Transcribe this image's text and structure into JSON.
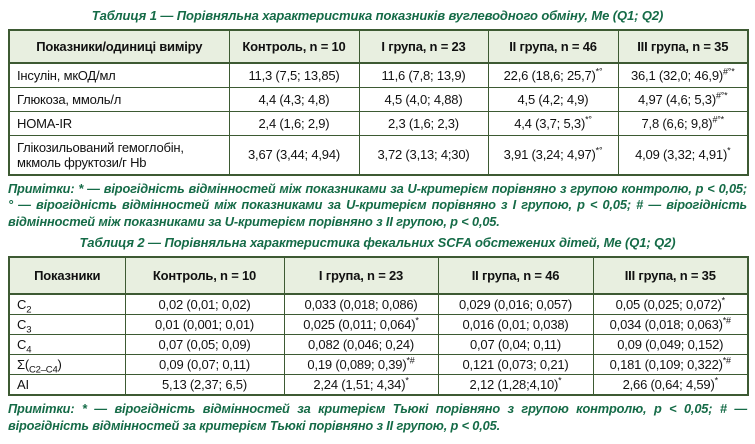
{
  "colors": {
    "header_bg": "#e8efe0",
    "border": "#3d5a33",
    "accent_text": "#156b47",
    "cell_text": "#111111",
    "page_bg": "#ffffff"
  },
  "table1": {
    "title": "Таблиця 1 — Порівняльна характеристика показників вуглеводного обміну, Ме (Q1; Q2)",
    "columns": [
      "Показники/одиниці виміру",
      "Контроль, n = 10",
      "І група, n = 23",
      "ІІ група, n = 46",
      "ІІІ група, n = 35"
    ],
    "rows": [
      {
        "label": [
          {
            "t": "Інсулін, мкОД/мл"
          }
        ],
        "cells": [
          {
            "v": "11,3 (7,5; 13,85)"
          },
          {
            "v": "11,6 (7,8; 13,9)"
          },
          {
            "v": "22,6 (18,6; 25,7)",
            "sup": "*°"
          },
          {
            "v": "36,1 (32,0; 46,9)",
            "sup": "#°*"
          }
        ]
      },
      {
        "label": [
          {
            "t": "Глюкоза, ммоль/л"
          }
        ],
        "cells": [
          {
            "v": "4,4 (4,3; 4,8)"
          },
          {
            "v": "4,5 (4,0; 4,88)"
          },
          {
            "v": "4,5 (4,2; 4,9)"
          },
          {
            "v": "4,97 (4,6; 5,3)",
            "sup": "#°*"
          }
        ]
      },
      {
        "label": [
          {
            "t": "HOMA-IR"
          }
        ],
        "cells": [
          {
            "v": "2,4 (1,6; 2,9)"
          },
          {
            "v": "2,3 (1,6; 2,3)"
          },
          {
            "v": "4,4 (3,7; 5,3)",
            "sup": "*°"
          },
          {
            "v": "7,8 (6,6; 9,8)",
            "sup": "#°*"
          }
        ]
      },
      {
        "label": [
          {
            "t": "Глікозильований гемоглобін, мкмоль фруктози/г Hb"
          }
        ],
        "cells": [
          {
            "v": "3,67 (3,44; 4,94)"
          },
          {
            "v": "3,72 (3,13; 4;30)"
          },
          {
            "v": "3,91 (3,24; 4,97)",
            "sup": "*°"
          },
          {
            "v": "4,09 (3,32; 4,91)",
            "sup": "*"
          }
        ]
      }
    ],
    "note": "Примітки: * — вірогідність відмінностей між показниками за U-критерієм порівняно з групою контролю, p < 0,05; ° — вірогідність відмінностей між показниками за U-критерієм порівняно з І групою, p < 0,05; # — вірогідність відмінностей між показниками за U-критерієм порівняно з ІІ групою, p < 0,05."
  },
  "table2": {
    "title": "Таблиця 2 — Порівняльна характеристика фекальних SCFA обстежених дітей, Ме (Q1; Q2)",
    "columns": [
      "Показники",
      "Контроль, n = 10",
      "І група, n = 23",
      "ІІ група, n = 46",
      "ІІІ група, n = 35"
    ],
    "rows": [
      {
        "label": [
          {
            "t": "С"
          },
          {
            "t": "2",
            "sub": true
          }
        ],
        "cells": [
          {
            "v": "0,02 (0,01; 0,02)"
          },
          {
            "v": "0,033 (0,018; 0,086)"
          },
          {
            "v": "0,029 (0,016; 0,057)"
          },
          {
            "v": "0,05 (0,025; 0,072)",
            "sup": "*"
          }
        ]
      },
      {
        "label": [
          {
            "t": "С"
          },
          {
            "t": "3",
            "sub": true
          }
        ],
        "cells": [
          {
            "v": "0,01 (0,001; 0,01)"
          },
          {
            "v": "0,025 (0,011; 0,064)",
            "sup": "*"
          },
          {
            "v": "0,016 (0,01; 0,038)"
          },
          {
            "v": "0,034 (0,018; 0,063)",
            "sup": "*#"
          }
        ]
      },
      {
        "label": [
          {
            "t": "С"
          },
          {
            "t": "4",
            "sub": true
          }
        ],
        "cells": [
          {
            "v": "0,07 (0,05; 0,09)"
          },
          {
            "v": "0,082 (0,046; 0,24)"
          },
          {
            "v": "0,07 (0,04; 0,11)"
          },
          {
            "v": "0,09 (0,049; 0,152)"
          }
        ]
      },
      {
        "label": [
          {
            "t": "Σ("
          },
          {
            "t": "С2–С4",
            "sub": true
          },
          {
            "t": ")"
          }
        ],
        "cells": [
          {
            "v": "0,09 (0,07; 0,11)"
          },
          {
            "v": "0,19 (0,089; 0,39)",
            "sup": "*#"
          },
          {
            "v": "0,121 (0,073; 0,21)"
          },
          {
            "v": "0,181 (0,109; 0,322)",
            "sup": "*#"
          }
        ]
      },
      {
        "label": [
          {
            "t": "АІ"
          }
        ],
        "cells": [
          {
            "v": "5,13 (2,37; 6,5)"
          },
          {
            "v": "2,24 (1,51; 4,34)",
            "sup": "*"
          },
          {
            "v": "2,12 (1,28;4,10)",
            "sup": "*"
          },
          {
            "v": "2,66 (0,64; 4,59)",
            "sup": "*"
          }
        ]
      }
    ],
    "note": "Примітки: * — вірогідність відмінностей за критерієм Тьюкі порівняно з групою контролю, p < 0,05; # — вірогідність відмінностей за критерієм Тьюкі порівняно з ІІ групою, p < 0,05."
  }
}
